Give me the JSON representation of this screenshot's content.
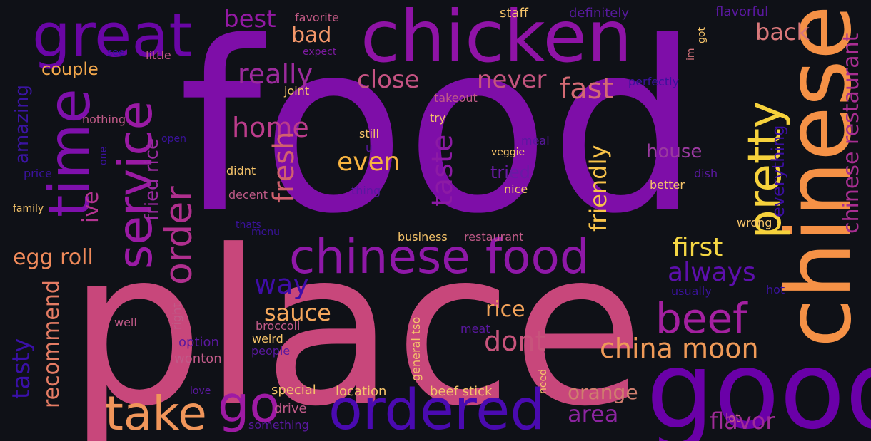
{
  "words": [
    {
      "text": "food",
      "color": "#7e0ea8"
    },
    {
      "text": "place",
      "color": "#c8477b"
    },
    {
      "text": "chicken",
      "color": "#8f13a6"
    },
    {
      "text": "good",
      "color": "#6a00a8"
    },
    {
      "text": "chinese",
      "color": "#f59146"
    },
    {
      "text": "great",
      "color": "#6a06a6"
    },
    {
      "text": "time",
      "color": "#7f10ac"
    },
    {
      "text": "service",
      "color": "#9a1aa4"
    },
    {
      "text": "chinese food",
      "color": "#8f18a8"
    },
    {
      "text": "ordered",
      "color": "#4a0ab0"
    },
    {
      "text": "take",
      "color": "#f0955a"
    },
    {
      "text": "go",
      "color": "#9e1aa4"
    },
    {
      "text": "pretty",
      "color": "#f6d23c"
    },
    {
      "text": "beef",
      "color": "#a420a0"
    },
    {
      "text": "order",
      "color": "#b02f8e"
    },
    {
      "text": "china moon",
      "color": "#ef9a58"
    },
    {
      "text": "chinese restaurant",
      "color": "#a82e92"
    },
    {
      "text": "really",
      "color": "#9c2a9c"
    },
    {
      "text": "close",
      "color": "#c55382"
    },
    {
      "text": "never",
      "color": "#c4547e"
    },
    {
      "text": "fast",
      "color": "#d46a74"
    },
    {
      "text": "home",
      "color": "#bc3c8b"
    },
    {
      "text": "even",
      "color": "#f7b340"
    },
    {
      "text": "taste",
      "color": "#8c1aa5"
    },
    {
      "text": "fresh",
      "color": "#d2616e"
    },
    {
      "text": "first",
      "color": "#f4d644"
    },
    {
      "text": "always",
      "color": "#5d0fac"
    },
    {
      "text": "way",
      "color": "#3f0da8"
    },
    {
      "text": "sauce",
      "color": "#f5a75c"
    },
    {
      "text": "rice",
      "color": "#f3a35a"
    },
    {
      "text": "dont",
      "color": "#c8547c"
    },
    {
      "text": "egg roll",
      "color": "#f08a5a"
    },
    {
      "text": "tasty",
      "color": "#3a10a8"
    },
    {
      "text": "recommend",
      "color": "#e57c64"
    },
    {
      "text": "area",
      "color": "#8c24a0"
    },
    {
      "text": "orange",
      "color": "#d07e6e"
    },
    {
      "text": "flavor",
      "color": "#a02b98"
    },
    {
      "text": "best",
      "color": "#9419a4"
    },
    {
      "text": "bad",
      "color": "#f3976a"
    },
    {
      "text": "back",
      "color": "#d9787a"
    },
    {
      "text": "couple",
      "color": "#f3a84c"
    },
    {
      "text": "amazing",
      "color": "#3b14a2"
    },
    {
      "text": "ive",
      "color": "#b53492"
    },
    {
      "text": "fried rice",
      "color": "#9a2aa0"
    },
    {
      "text": "friendly",
      "color": "#f9c34a"
    },
    {
      "text": "house",
      "color": "#9b3aa0"
    },
    {
      "text": "tried",
      "color": "#6a1aa4"
    },
    {
      "text": "everything",
      "color": "#3b0ea0"
    },
    {
      "text": "staff",
      "color": "#f6c46a"
    },
    {
      "text": "definitely",
      "color": "#561a9c"
    },
    {
      "text": "flavorful",
      "color": "#5a18a0"
    },
    {
      "text": "favorite",
      "color": "#c45a86"
    },
    {
      "text": "little",
      "color": "#c05484"
    },
    {
      "text": "see",
      "color": "#3a10a0"
    },
    {
      "text": "expect",
      "color": "#7c1aa0"
    },
    {
      "text": "got",
      "color": "#f6c46a"
    },
    {
      "text": "im",
      "color": "#d3727a"
    },
    {
      "text": "perfectly",
      "color": "#3a129c"
    },
    {
      "text": "joint",
      "color": "#f6c46a"
    },
    {
      "text": "takeout",
      "color": "#c05a88"
    },
    {
      "text": "nothing",
      "color": "#c05a88"
    },
    {
      "text": "open",
      "color": "#3a129c"
    },
    {
      "text": "one",
      "color": "#3a129c"
    },
    {
      "text": "price",
      "color": "#3a129c"
    },
    {
      "text": "try",
      "color": "#f6c46a"
    },
    {
      "text": "still",
      "color": "#f6c46a"
    },
    {
      "text": "u",
      "color": "#5a18a0"
    },
    {
      "text": "meal",
      "color": "#5a18a0"
    },
    {
      "text": "veggie",
      "color": "#f6c46a"
    },
    {
      "text": "dish",
      "color": "#5a18a0"
    },
    {
      "text": "didnt",
      "color": "#f6c46a"
    },
    {
      "text": "nice",
      "color": "#f6c46a"
    },
    {
      "text": "better",
      "color": "#f6c46a"
    },
    {
      "text": "thing",
      "color": "#5a18a0"
    },
    {
      "text": "family",
      "color": "#f6c46a"
    },
    {
      "text": "decent",
      "color": "#c05a88"
    },
    {
      "text": "thats",
      "color": "#3a129c"
    },
    {
      "text": "menu",
      "color": "#3a129c"
    },
    {
      "text": "business",
      "color": "#f6c46a"
    },
    {
      "text": "restaurant",
      "color": "#c05a88"
    },
    {
      "text": "wrong",
      "color": "#f6c46a"
    },
    {
      "text": "usually",
      "color": "#3a129c"
    },
    {
      "text": "hot",
      "color": "#3a129c"
    },
    {
      "text": "well",
      "color": "#c05a88"
    },
    {
      "text": "right",
      "color": "#c05a88"
    },
    {
      "text": "broccoli",
      "color": "#c05a88"
    },
    {
      "text": "weird",
      "color": "#f6c46a"
    },
    {
      "text": "people",
      "color": "#5a18a0"
    },
    {
      "text": "option",
      "color": "#5a18a0"
    },
    {
      "text": "wonton",
      "color": "#c05a88"
    },
    {
      "text": "general tso",
      "color": "#f6c46a"
    },
    {
      "text": "meat",
      "color": "#5a18a0"
    },
    {
      "text": "need",
      "color": "#f6c46a"
    },
    {
      "text": "love",
      "color": "#5a18a0"
    },
    {
      "text": "special",
      "color": "#f6c46a"
    },
    {
      "text": "location",
      "color": "#f6c46a"
    },
    {
      "text": "beef stick",
      "color": "#f6c46a"
    },
    {
      "text": "drive",
      "color": "#c05a88"
    },
    {
      "text": "something",
      "color": "#5a18a0"
    },
    {
      "text": "lot",
      "color": "#c05a88"
    }
  ]
}
